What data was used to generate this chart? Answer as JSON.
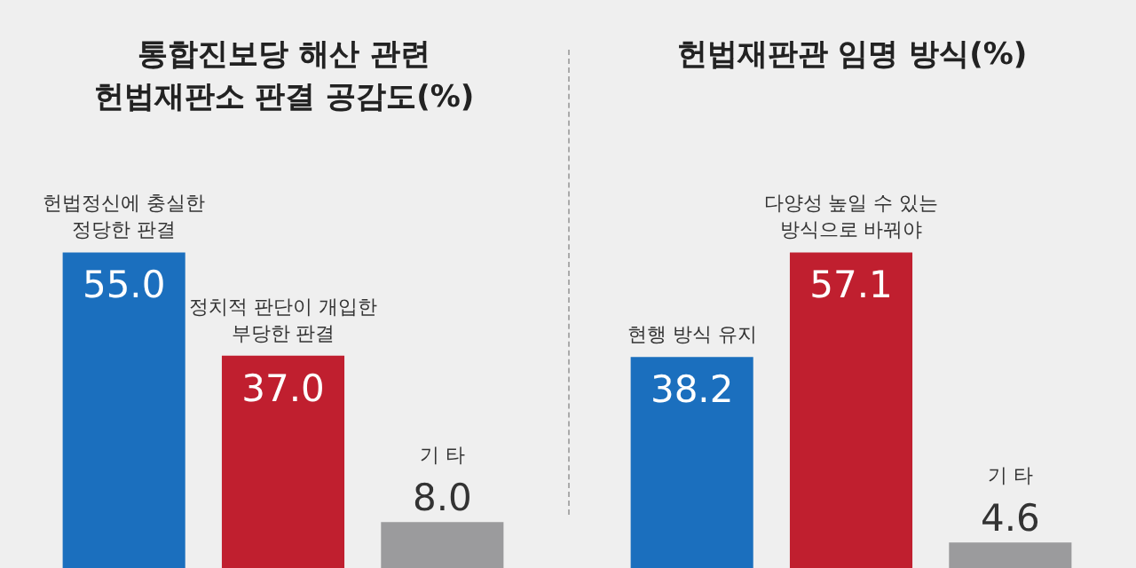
{
  "chart_data": [
    {
      "type": "bar",
      "title": "통합진보당 해산 관련\n헌법재판소 판결 공감도(%)",
      "categories": [
        "헌법정신에 충실한\n정당한 판결",
        "정치적 판단이 개입한\n부당한 판결",
        "기 타"
      ],
      "values": [
        55.0,
        37.0,
        8.0
      ],
      "value_labels": [
        "55.0",
        "37.0",
        "8.0"
      ],
      "colors": [
        "#1b6fbe",
        "#c01f2f",
        "#9b9b9d"
      ],
      "tick_labels": "x"
    },
    {
      "type": "bar",
      "title": "헌법재판관 임명 방식(%)",
      "categories": [
        "현행 방식 유지",
        "다양성 높일 수 있는\n방식으로 바꿔야",
        "기 타"
      ],
      "values": [
        38.2,
        57.1,
        4.6
      ],
      "value_labels": [
        "38.2",
        "57.1",
        "4.6"
      ],
      "colors": [
        "#1b6fbe",
        "#c01f2f",
        "#9b9b9d"
      ],
      "tick_labels": "x"
    }
  ]
}
